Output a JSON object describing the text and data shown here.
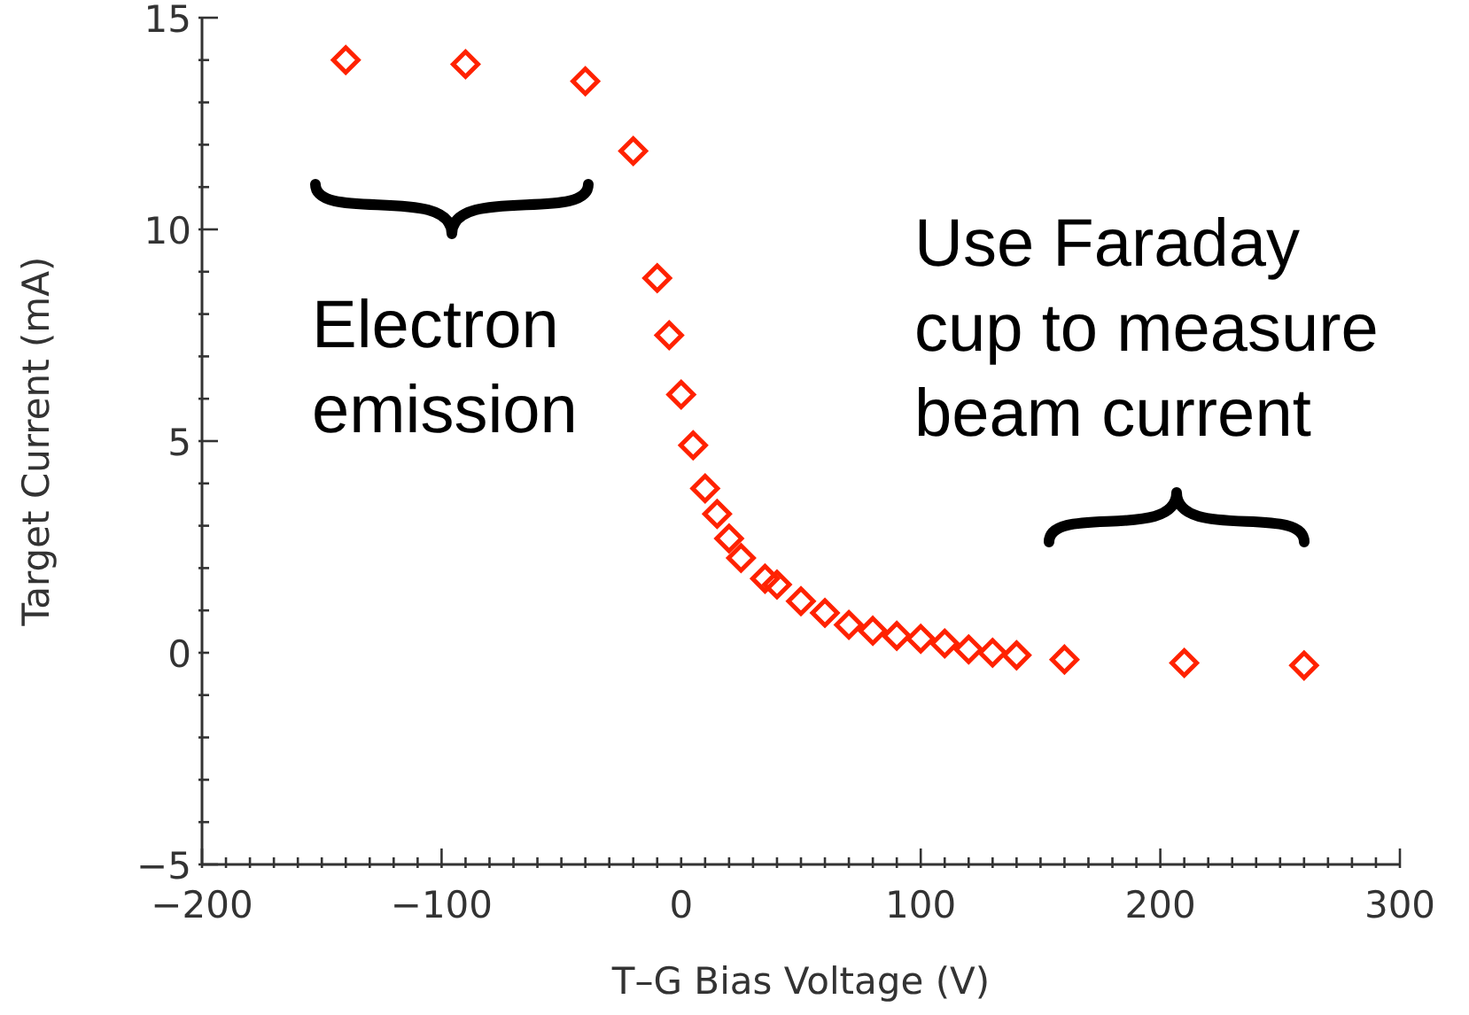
{
  "chart_data": {
    "type": "scatter",
    "xlabel": "T–G Bias Voltage (V)",
    "ylabel": "Target Current (mA)",
    "annotations": [
      "Electron\nemission",
      "Use Faraday\ncup to measure\nbeam current"
    ],
    "x": [
      -140,
      -90,
      -40,
      -20,
      -10,
      -5,
      0,
      5,
      10,
      15,
      20,
      25,
      35,
      40,
      50,
      60,
      70,
      80,
      90,
      100,
      110,
      120,
      130,
      140,
      160,
      210,
      260
    ],
    "series": [
      {
        "color": "#ff2200",
        "values": [
          14.0,
          13.9,
          13.5,
          11.85,
          8.85,
          7.5,
          6.1,
          4.9,
          3.88,
          3.28,
          2.7,
          2.24,
          1.75,
          1.61,
          1.22,
          0.94,
          0.66,
          0.52,
          0.4,
          0.33,
          0.22,
          0.08,
          0.0,
          -0.06,
          -0.16,
          -0.24,
          -0.3
        ]
      }
    ],
    "marker": "diamond",
    "grid": false,
    "xlim": [
      -200,
      300
    ],
    "ylim": [
      -5,
      15
    ],
    "xticks": [
      -200,
      {
        "value": -190,
        "label": null
      },
      {
        "value": -180,
        "label": null
      },
      {
        "value": -170,
        "label": null
      },
      {
        "value": -160,
        "label": null
      },
      {
        "value": -150,
        "label": null
      },
      {
        "value": -140,
        "label": null
      },
      {
        "value": -130,
        "label": null
      },
      {
        "value": -120,
        "label": null
      },
      {
        "value": -110,
        "label": null
      },
      -100,
      {
        "value": -90,
        "label": null
      },
      {
        "value": -80,
        "label": null
      },
      {
        "value": -70,
        "label": null
      },
      {
        "value": -60,
        "label": null
      },
      {
        "value": -50,
        "label": null
      },
      {
        "value": -40,
        "label": null
      },
      {
        "value": -30,
        "label": null
      },
      {
        "value": -20,
        "label": null
      },
      {
        "value": -10,
        "label": null
      },
      0,
      {
        "value": 10,
        "label": null
      },
      {
        "value": 20,
        "label": null
      },
      {
        "value": 30,
        "label": null
      },
      {
        "value": 40,
        "label": null
      },
      {
        "value": 50,
        "label": null
      },
      {
        "value": 60,
        "label": null
      },
      {
        "value": 70,
        "label": null
      },
      {
        "value": 80,
        "label": null
      },
      {
        "value": 90,
        "label": null
      },
      100,
      {
        "value": 110,
        "label": null
      },
      {
        "value": 120,
        "label": null
      },
      {
        "value": 130,
        "label": null
      },
      {
        "value": 140,
        "label": null
      },
      {
        "value": 150,
        "label": null
      },
      {
        "value": 160,
        "label": null
      },
      {
        "value": 170,
        "label": null
      },
      {
        "value": 180,
        "label": null
      },
      {
        "value": 190,
        "label": null
      },
      200,
      {
        "value": 210,
        "label": null
      },
      {
        "value": 220,
        "label": null
      },
      {
        "value": 230,
        "label": null
      },
      {
        "value": 240,
        "label": null
      },
      {
        "value": 250,
        "label": null
      },
      {
        "value": 260,
        "label": null
      },
      {
        "value": 270,
        "label": null
      },
      {
        "value": 280,
        "label": null
      },
      {
        "value": 290,
        "label": null
      },
      300
    ],
    "yticks": [
      -5,
      {
        "value": -4,
        "label": null
      },
      {
        "value": -3,
        "label": null
      },
      {
        "value": -2,
        "label": null
      },
      {
        "value": -1,
        "label": null
      },
      0,
      {
        "value": 1,
        "label": null
      },
      {
        "value": 2,
        "label": null
      },
      {
        "value": 3,
        "label": null
      },
      {
        "value": 4,
        "label": null
      },
      5,
      {
        "value": 6,
        "label": null
      },
      {
        "value": 7,
        "label": null
      },
      {
        "value": 8,
        "label": null
      },
      {
        "value": 9,
        "label": null
      },
      10,
      {
        "value": 11,
        "label": null
      },
      {
        "value": 12,
        "label": null
      },
      {
        "value": 13,
        "label": null
      },
      {
        "value": 14,
        "label": null
      },
      15
    ]
  }
}
